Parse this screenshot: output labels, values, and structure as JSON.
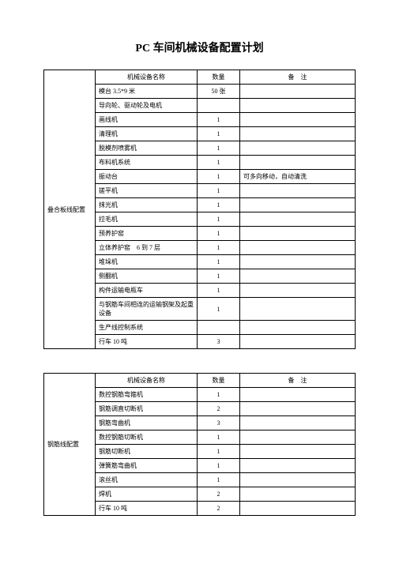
{
  "title": "PC 车间机械设备配置计划",
  "headers": {
    "name": "机械设备名称",
    "qty": "数量",
    "note": "备　注"
  },
  "table1": {
    "label": "叠合板线配置",
    "rows": [
      {
        "name": "模台 3.5*9 米",
        "qty": "50 张",
        "note": ""
      },
      {
        "name": "导向轮、驱动轮及电机",
        "qty": "",
        "note": ""
      },
      {
        "name": "画线机",
        "qty": "1",
        "note": ""
      },
      {
        "name": "清理机",
        "qty": "1",
        "note": ""
      },
      {
        "name": "脱模剂喷雾机",
        "qty": "1",
        "note": ""
      },
      {
        "name": "布料机系统",
        "qty": "1",
        "note": ""
      },
      {
        "name": "振动台",
        "qty": "1",
        "note": "可多向移动，自动清洗"
      },
      {
        "name": "搓平机",
        "qty": "1",
        "note": ""
      },
      {
        "name": "抹光机",
        "qty": "1",
        "note": ""
      },
      {
        "name": "拉毛机",
        "qty": "1",
        "note": ""
      },
      {
        "name": "预养护窑",
        "qty": "1",
        "note": ""
      },
      {
        "name": "立体养护窑　6 到 7 层",
        "qty": "1",
        "note": ""
      },
      {
        "name": "堆垛机",
        "qty": "1",
        "note": ""
      },
      {
        "name": "侧翻机",
        "qty": "1",
        "note": ""
      },
      {
        "name": "构件运输电瓶车",
        "qty": "1",
        "note": ""
      },
      {
        "name": "与钢筋车间相连的运输钢架及起重设备",
        "qty": "1",
        "note": "",
        "tall": true
      },
      {
        "name": "生产线控制系统",
        "qty": "",
        "note": ""
      },
      {
        "name": "行车 10 吨",
        "qty": "3",
        "note": ""
      }
    ]
  },
  "table2": {
    "label": "钢筋线配置",
    "rows": [
      {
        "name": "数控钢筋弯箍机",
        "qty": "1",
        "note": ""
      },
      {
        "name": "钢筋调直切断机",
        "qty": "2",
        "note": ""
      },
      {
        "name": "钢筋弯曲机",
        "qty": "3",
        "note": ""
      },
      {
        "name": "数控钢筋切断机",
        "qty": "1",
        "note": ""
      },
      {
        "name": "钢筋切断机",
        "qty": "1",
        "note": ""
      },
      {
        "name": "弹簧筋弯曲机",
        "qty": "1",
        "note": ""
      },
      {
        "name": "滚丝机",
        "qty": "1",
        "note": ""
      },
      {
        "name": "焊机",
        "qty": "2",
        "note": ""
      },
      {
        "name": "行车 10 吨",
        "qty": "2",
        "note": ""
      }
    ]
  }
}
